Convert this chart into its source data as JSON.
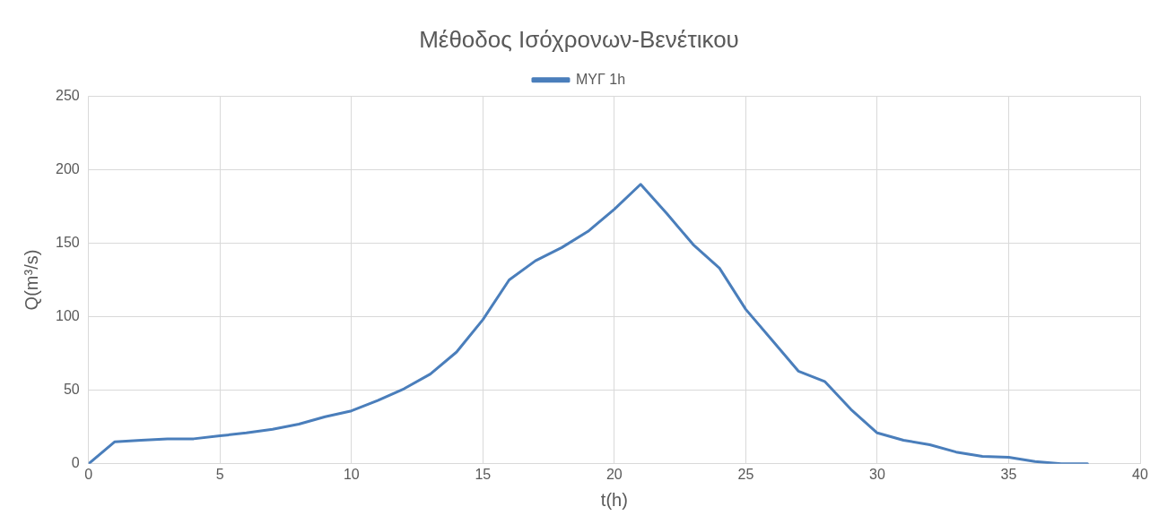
{
  "chart_data": {
    "type": "line",
    "title": "Μέθοδος Ισόχρονων-Βενέτικου",
    "xlabel": "t(h)",
    "ylabel": "Q(m³/s)",
    "x": [
      0,
      1,
      2,
      3,
      4,
      5,
      6,
      7,
      8,
      9,
      10,
      11,
      12,
      13,
      14,
      15,
      16,
      17,
      18,
      19,
      20,
      21,
      22,
      23,
      24,
      25,
      26,
      27,
      28,
      29,
      30,
      31,
      32,
      33,
      34,
      35,
      36,
      37,
      38
    ],
    "series": [
      {
        "name": "ΜΥΓ 1h",
        "color": "#4a7ebb",
        "values": [
          0,
          15,
          16,
          17,
          17,
          19,
          21,
          23.5,
          27,
          32,
          36,
          43,
          51,
          61,
          76,
          98,
          125,
          138,
          147,
          158,
          173,
          190,
          170,
          149,
          133,
          105,
          84,
          63,
          56,
          37,
          21,
          16,
          13,
          8,
          5,
          4.5,
          1.5,
          0,
          0
        ]
      }
    ],
    "xlim": [
      0,
      40
    ],
    "xticks": [
      0,
      5,
      10,
      15,
      20,
      25,
      30,
      35,
      40
    ],
    "ylim": [
      0,
      250
    ],
    "yticks": [
      0,
      50,
      100,
      150,
      200,
      250
    ],
    "grid": true,
    "legend": "top",
    "marker": "none",
    "line_style": "solid"
  }
}
